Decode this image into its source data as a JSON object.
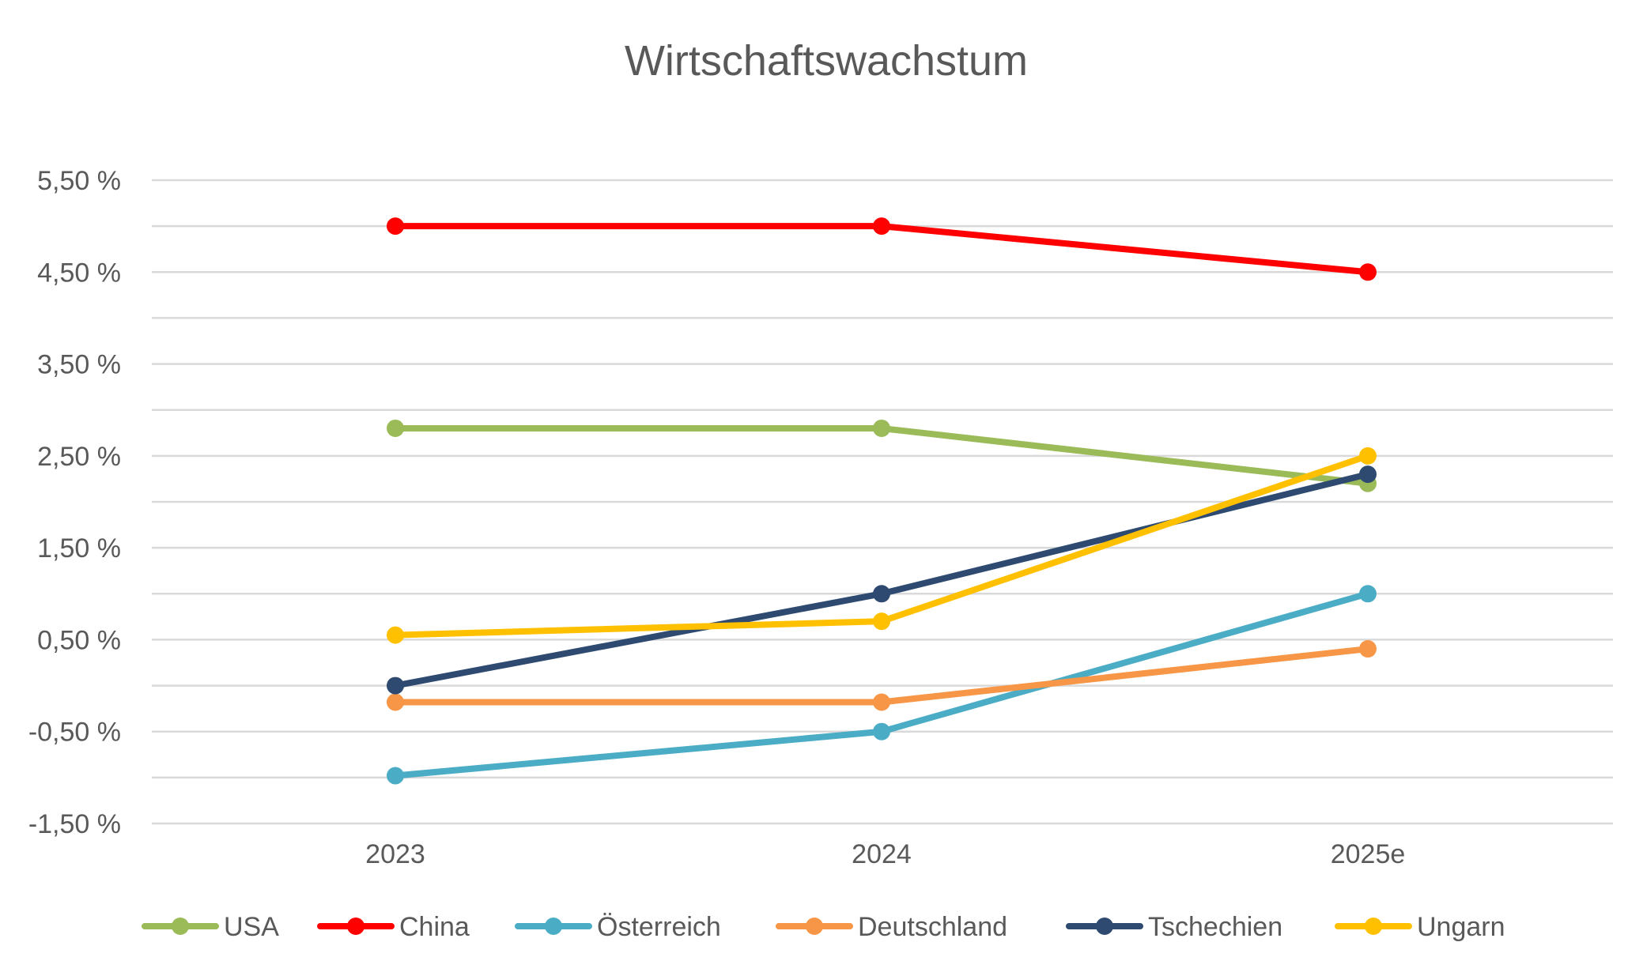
{
  "chart_data": {
    "type": "line",
    "title": "Wirtschaftswachstum",
    "xlabel": "",
    "ylabel": "",
    "categories": [
      "2023",
      "2024",
      "2025e"
    ],
    "yticks": [
      "5,50 %",
      "4,50 %",
      "3,50 %",
      "2,50 %",
      "1,50 %",
      "0,50 %",
      "-0,50 %",
      "-1,50 %"
    ],
    "ylim": [
      -1.5,
      5.5
    ],
    "grid": true,
    "legend_position": "bottom",
    "series": [
      {
        "name": "USA",
        "color": "#9BBB59",
        "values": [
          2.8,
          2.8,
          2.2
        ]
      },
      {
        "name": "China",
        "color": "#FF0000",
        "values": [
          5.0,
          5.0,
          4.5
        ]
      },
      {
        "name": "Österreich",
        "color": "#4BACC6",
        "values": [
          -0.98,
          -0.5,
          1.0
        ]
      },
      {
        "name": "Deutschland",
        "color": "#F79646",
        "values": [
          -0.18,
          -0.18,
          0.4
        ]
      },
      {
        "name": "Tschechien",
        "color": "#2E4A70",
        "values": [
          0.0,
          1.0,
          2.3
        ]
      },
      {
        "name": "Ungarn",
        "color": "#FFC000",
        "values": [
          0.55,
          0.7,
          2.5
        ]
      }
    ]
  }
}
